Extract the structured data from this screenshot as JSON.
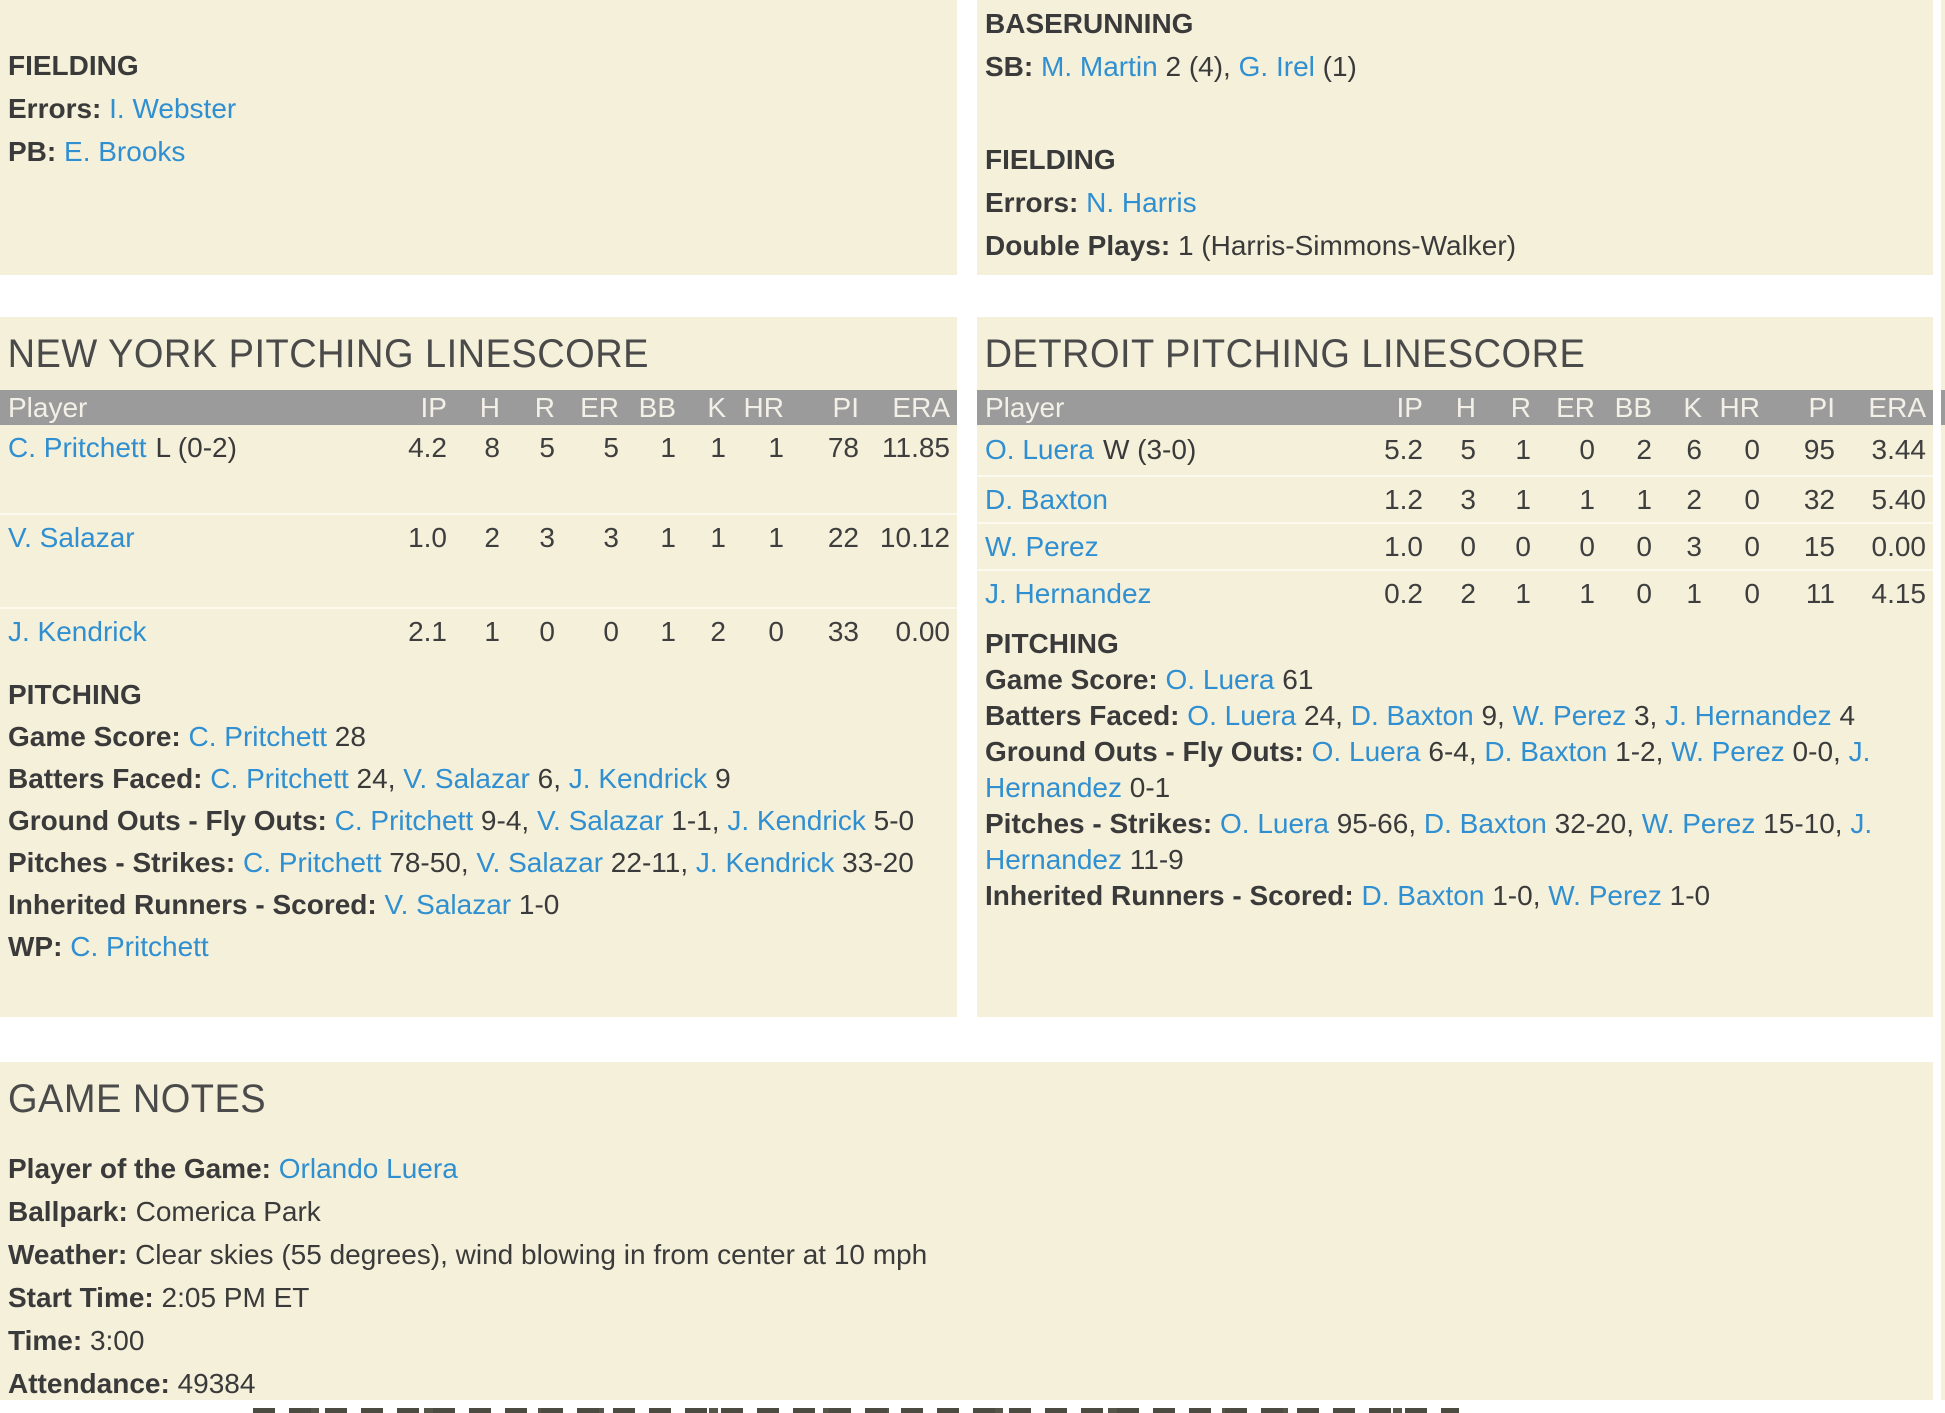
{
  "colors": {
    "panel_background": "#f5f0da",
    "page_background": "#ffffff",
    "table_header_background": "#9b9b9b",
    "table_header_text": "#f3f0e7",
    "link": "#2f8fd0",
    "text": "#3a3a3a"
  },
  "away_fielding": {
    "title": "FIELDING",
    "lines": [
      [
        {
          "t": "Errors:",
          "c": "label"
        },
        {
          "t": " ",
          "c": "plain"
        },
        {
          "t": "I. Webster",
          "c": "link"
        }
      ],
      [
        {
          "t": "PB:",
          "c": "label"
        },
        {
          "t": " ",
          "c": "plain"
        },
        {
          "t": "E. Brooks",
          "c": "link"
        }
      ]
    ]
  },
  "home_summary": {
    "baserunning_title": "BASERUNNING",
    "sb_line": [
      {
        "t": "SB:",
        "c": "label"
      },
      {
        "t": " ",
        "c": "plain"
      },
      {
        "t": "M. Martin",
        "c": "link"
      },
      {
        "t": " 2 (4), ",
        "c": "plain"
      },
      {
        "t": "G. Irel",
        "c": "link"
      },
      {
        "t": " (1)",
        "c": "plain"
      }
    ],
    "fielding_title": "FIELDING",
    "errors_line": [
      {
        "t": "Errors:",
        "c": "label"
      },
      {
        "t": " ",
        "c": "plain"
      },
      {
        "t": "N. Harris",
        "c": "link"
      }
    ],
    "dp_line": [
      {
        "t": "Double Plays:",
        "c": "label"
      },
      {
        "t": " 1 (Harris-Simmons-Walker)",
        "c": "plain"
      }
    ]
  },
  "ny_linescore": {
    "title": "NEW YORK PITCHING LINESCORE",
    "columns": [
      "Player",
      "IP",
      "H",
      "R",
      "ER",
      "BB",
      "K",
      "HR",
      "PI",
      "ERA"
    ],
    "rows": [
      {
        "name": "C. Pritchett",
        "note": "L (0-2)",
        "ip": "4.2",
        "h": "8",
        "r": "5",
        "er": "5",
        "bb": "1",
        "k": "1",
        "hr": "1",
        "pi": "78",
        "era": "11.85"
      },
      {
        "name": "V. Salazar",
        "note": "",
        "ip": "1.0",
        "h": "2",
        "r": "3",
        "er": "3",
        "bb": "1",
        "k": "1",
        "hr": "1",
        "pi": "22",
        "era": "10.12"
      },
      {
        "name": "J. Kendrick",
        "note": "",
        "ip": "2.1",
        "h": "1",
        "r": "0",
        "er": "0",
        "bb": "1",
        "k": "2",
        "hr": "0",
        "pi": "33",
        "era": "0.00"
      }
    ]
  },
  "ny_notes": {
    "heading": "PITCHING",
    "lines": [
      [
        {
          "t": "Game Score:",
          "c": "label"
        },
        {
          "t": " ",
          "c": "plain"
        },
        {
          "t": "C. Pritchett",
          "c": "link"
        },
        {
          "t": " 28",
          "c": "plain"
        }
      ],
      [
        {
          "t": "Batters Faced:",
          "c": "label"
        },
        {
          "t": " ",
          "c": "plain"
        },
        {
          "t": "C. Pritchett",
          "c": "link"
        },
        {
          "t": " 24, ",
          "c": "plain"
        },
        {
          "t": "V. Salazar",
          "c": "link"
        },
        {
          "t": " 6, ",
          "c": "plain"
        },
        {
          "t": "J. Kendrick",
          "c": "link"
        },
        {
          "t": " 9",
          "c": "plain"
        }
      ],
      [
        {
          "t": "Ground Outs - Fly Outs:",
          "c": "label"
        },
        {
          "t": " ",
          "c": "plain"
        },
        {
          "t": "C. Pritchett",
          "c": "link"
        },
        {
          "t": " 9-4, ",
          "c": "plain"
        },
        {
          "t": "V. Salazar",
          "c": "link"
        },
        {
          "t": " 1-1, ",
          "c": "plain"
        },
        {
          "t": "J. Kendrick",
          "c": "link"
        },
        {
          "t": " 5-0",
          "c": "plain"
        }
      ],
      [
        {
          "t": "Pitches - Strikes:",
          "c": "label"
        },
        {
          "t": " ",
          "c": "plain"
        },
        {
          "t": "C. Pritchett",
          "c": "link"
        },
        {
          "t": " 78-50, ",
          "c": "plain"
        },
        {
          "t": "V. Salazar",
          "c": "link"
        },
        {
          "t": " 22-11, ",
          "c": "plain"
        },
        {
          "t": "J. Kendrick",
          "c": "link"
        },
        {
          "t": " 33-20",
          "c": "plain"
        }
      ],
      [
        {
          "t": "Inherited Runners - Scored:",
          "c": "label"
        },
        {
          "t": " ",
          "c": "plain"
        },
        {
          "t": "V. Salazar",
          "c": "link"
        },
        {
          "t": " 1-0",
          "c": "plain"
        }
      ],
      [
        {
          "t": "WP:",
          "c": "label"
        },
        {
          "t": " ",
          "c": "plain"
        },
        {
          "t": "C. Pritchett",
          "c": "link"
        }
      ]
    ]
  },
  "det_linescore": {
    "title": "DETROIT PITCHING LINESCORE",
    "columns": [
      "Player",
      "IP",
      "H",
      "R",
      "ER",
      "BB",
      "K",
      "HR",
      "PI",
      "ERA"
    ],
    "rows": [
      {
        "name": "O. Luera",
        "note": "W (3-0)",
        "ip": "5.2",
        "h": "5",
        "r": "1",
        "er": "0",
        "bb": "2",
        "k": "6",
        "hr": "0",
        "pi": "95",
        "era": "3.44"
      },
      {
        "name": "D. Baxton",
        "note": "",
        "ip": "1.2",
        "h": "3",
        "r": "1",
        "er": "1",
        "bb": "1",
        "k": "2",
        "hr": "0",
        "pi": "32",
        "era": "5.40"
      },
      {
        "name": "W. Perez",
        "note": "",
        "ip": "1.0",
        "h": "0",
        "r": "0",
        "er": "0",
        "bb": "0",
        "k": "3",
        "hr": "0",
        "pi": "15",
        "era": "0.00"
      },
      {
        "name": "J. Hernandez",
        "note": "",
        "ip": "0.2",
        "h": "2",
        "r": "1",
        "er": "1",
        "bb": "0",
        "k": "1",
        "hr": "0",
        "pi": "11",
        "era": "4.15"
      }
    ]
  },
  "det_notes": {
    "heading": "PITCHING",
    "lines": [
      [
        {
          "t": "Game Score:",
          "c": "label"
        },
        {
          "t": " ",
          "c": "plain"
        },
        {
          "t": "O. Luera",
          "c": "link"
        },
        {
          "t": " 61",
          "c": "plain"
        }
      ],
      [
        {
          "t": "Batters Faced:",
          "c": "label"
        },
        {
          "t": " ",
          "c": "plain"
        },
        {
          "t": "O. Luera",
          "c": "link"
        },
        {
          "t": " 24, ",
          "c": "plain"
        },
        {
          "t": "D. Baxton",
          "c": "link"
        },
        {
          "t": " 9, ",
          "c": "plain"
        },
        {
          "t": "W. Perez",
          "c": "link"
        },
        {
          "t": " 3, ",
          "c": "plain"
        },
        {
          "t": "J. Hernandez",
          "c": "link"
        },
        {
          "t": " 4",
          "c": "plain"
        }
      ],
      [
        {
          "t": "Ground Outs - Fly Outs:",
          "c": "label"
        },
        {
          "t": " ",
          "c": "plain"
        },
        {
          "t": "O. Luera",
          "c": "link"
        },
        {
          "t": " 6-4, ",
          "c": "plain"
        },
        {
          "t": "D. Baxton",
          "c": "link"
        },
        {
          "t": " 1-2, ",
          "c": "plain"
        },
        {
          "t": "W. Perez",
          "c": "link"
        },
        {
          "t": " 0-0, ",
          "c": "plain"
        },
        {
          "t": "J. Hernandez",
          "c": "link"
        },
        {
          "t": " 0-1",
          "c": "plain"
        }
      ],
      [
        {
          "t": "Pitches - Strikes:",
          "c": "label"
        },
        {
          "t": " ",
          "c": "plain"
        },
        {
          "t": "O. Luera",
          "c": "link"
        },
        {
          "t": " 95-66, ",
          "c": "plain"
        },
        {
          "t": "D. Baxton",
          "c": "link"
        },
        {
          "t": " 32-20, ",
          "c": "plain"
        },
        {
          "t": "W. Perez",
          "c": "link"
        },
        {
          "t": " 15-10, ",
          "c": "plain"
        },
        {
          "t": "J. Hernandez",
          "c": "link"
        },
        {
          "t": " 11-9",
          "c": "plain"
        }
      ],
      [
        {
          "t": "Inherited Runners - Scored:",
          "c": "label"
        },
        {
          "t": " ",
          "c": "plain"
        },
        {
          "t": "D. Baxton",
          "c": "link"
        },
        {
          "t": " 1-0, ",
          "c": "plain"
        },
        {
          "t": "W. Perez",
          "c": "link"
        },
        {
          "t": " 1-0",
          "c": "plain"
        }
      ]
    ]
  },
  "game_notes": {
    "title": "GAME NOTES",
    "lines": [
      [
        {
          "t": "Player of the Game:",
          "c": "label"
        },
        {
          "t": " ",
          "c": "plain"
        },
        {
          "t": "Orlando Luera",
          "c": "link"
        }
      ],
      [
        {
          "t": "Ballpark:",
          "c": "label"
        },
        {
          "t": " Comerica Park",
          "c": "plain"
        }
      ],
      [
        {
          "t": "Weather:",
          "c": "label"
        },
        {
          "t": " Clear skies (55 degrees), wind blowing in from center at 10 mph",
          "c": "plain"
        }
      ],
      [
        {
          "t": "Start Time:",
          "c": "label"
        },
        {
          "t": " 2:05 PM ET",
          "c": "plain"
        }
      ],
      [
        {
          "t": "Time:",
          "c": "label"
        },
        {
          "t": " 3:00",
          "c": "plain"
        }
      ],
      [
        {
          "t": "Attendance:",
          "c": "label"
        },
        {
          "t": " 49384",
          "c": "plain"
        }
      ]
    ]
  }
}
